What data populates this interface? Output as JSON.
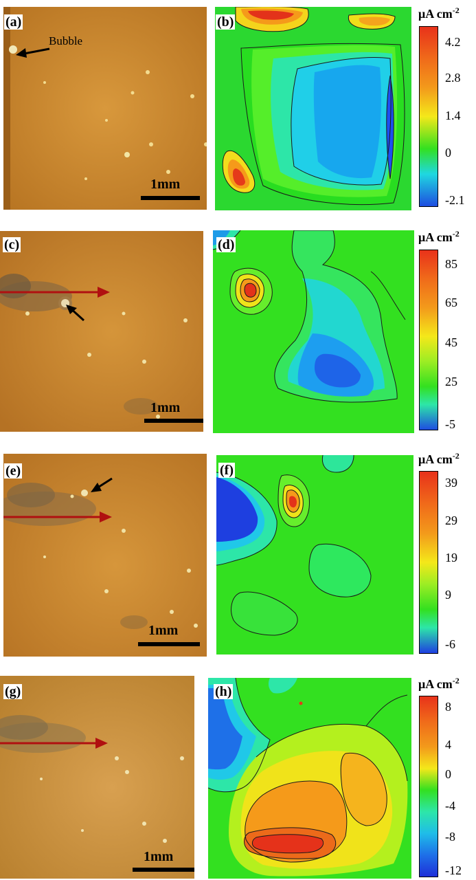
{
  "panels": {
    "a": {
      "label": "(a)",
      "annotation": "Bubble",
      "scale": "1mm"
    },
    "b": {
      "label": "(b)"
    },
    "c": {
      "label": "(c)",
      "scale": "1mm"
    },
    "d": {
      "label": "(d)"
    },
    "e": {
      "label": "(e)",
      "scale": "1mm"
    },
    "f": {
      "label": "(f)"
    },
    "g": {
      "label": "(g)",
      "scale": "1mm"
    },
    "h": {
      "label": "(h)"
    }
  },
  "colorbars": [
    {
      "unit": "μA cm",
      "exponent": "-2",
      "ticks": [
        "4.2",
        "2.8",
        "1.4",
        "0",
        "-2.1"
      ]
    },
    {
      "unit": "μA cm",
      "exponent": "-2",
      "ticks": [
        "85",
        "65",
        "45",
        "25",
        "-5"
      ]
    },
    {
      "unit": "μA cm",
      "exponent": "-2",
      "ticks": [
        "39",
        "29",
        "19",
        "9",
        "-6"
      ]
    },
    {
      "unit": "μA cm",
      "exponent": "-2",
      "ticks": [
        "8",
        "4",
        "0",
        "-4",
        "-8",
        "-12"
      ]
    }
  ],
  "colors": {
    "photo_base": "#c9862f",
    "arrow_red": "#b01010",
    "map_green": "#33e020",
    "map_cyan": "#1fd8e0",
    "map_blue": "#1e4de0",
    "map_yellow": "#f4e81a",
    "map_orange": "#f39a1b",
    "map_red": "#e8321a"
  }
}
